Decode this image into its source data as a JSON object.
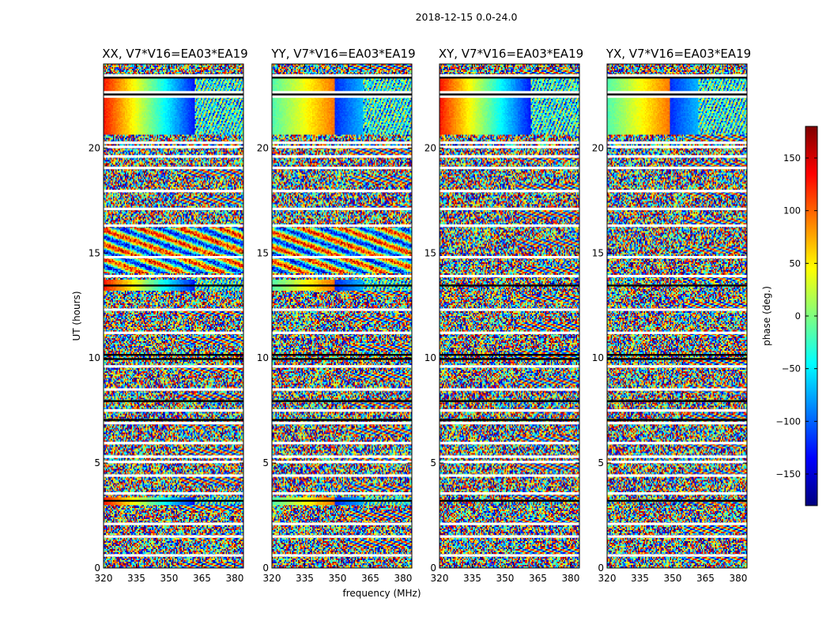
{
  "figure": {
    "suptitle": "2018-12-15 0.0-24.0",
    "xlabel": "frequency (MHz)",
    "ylabel": "UT (hours)"
  },
  "colorbar": {
    "label": "phase (deg.)",
    "range": [
      -180,
      180
    ],
    "ticks": [
      150,
      100,
      50,
      0,
      -50,
      -100,
      -150
    ],
    "colormap": "jet",
    "colors": [
      "#00007f",
      "#0000ff",
      "#007fff",
      "#00ffff",
      "#7fff7f",
      "#ffff00",
      "#ff7f00",
      "#ff0000",
      "#7f0000"
    ]
  },
  "chart_data": [
    {
      "type": "heatmap",
      "title": "XX, V7*V16=EA03*EA19",
      "x_ticks": [
        320,
        335,
        350,
        365,
        380
      ],
      "y_ticks": [
        0,
        5,
        10,
        15,
        20
      ],
      "xlim": [
        320,
        384
      ],
      "ylim": [
        0,
        24
      ],
      "value_range": [
        -180,
        180
      ],
      "coherent_bands": [
        {
          "t0": 22.5,
          "t1": 23.3,
          "pattern": "gradient"
        },
        {
          "t0": 20.6,
          "t1": 22.4,
          "pattern": "gradient"
        },
        {
          "t0": 13.2,
          "t1": 13.7,
          "pattern": "gradient"
        },
        {
          "t0": 3.0,
          "t1": 3.4,
          "pattern": "gradient"
        },
        {
          "t0": 14.0,
          "t1": 16.2,
          "pattern": "fringe"
        }
      ]
    },
    {
      "type": "heatmap",
      "title": "YY, V7*V16=EA03*EA19",
      "x_ticks": [
        320,
        335,
        350,
        365,
        380
      ],
      "y_ticks": [
        0,
        5,
        10,
        15,
        20
      ],
      "xlim": [
        320,
        384
      ],
      "ylim": [
        0,
        24
      ],
      "value_range": [
        -180,
        180
      ],
      "coherent_bands": [
        {
          "t0": 22.5,
          "t1": 23.3,
          "pattern": "gradient"
        },
        {
          "t0": 20.6,
          "t1": 22.4,
          "pattern": "gradient"
        },
        {
          "t0": 13.2,
          "t1": 13.7,
          "pattern": "gradient"
        },
        {
          "t0": 3.0,
          "t1": 3.4,
          "pattern": "gradient"
        },
        {
          "t0": 14.0,
          "t1": 16.2,
          "pattern": "fringe"
        }
      ]
    },
    {
      "type": "heatmap",
      "title": "XY, V7*V16=EA03*EA19",
      "x_ticks": [
        320,
        335,
        350,
        365,
        380
      ],
      "y_ticks": [
        0,
        5,
        10,
        15,
        20
      ],
      "xlim": [
        320,
        384
      ],
      "ylim": [
        0,
        24
      ],
      "value_range": [
        -180,
        180
      ],
      "coherent_bands": [
        {
          "t0": 20.6,
          "t1": 23.3,
          "pattern": "gradient"
        }
      ]
    },
    {
      "type": "heatmap",
      "title": "YX, V7*V16=EA03*EA19",
      "x_ticks": [
        320,
        335,
        350,
        365,
        380
      ],
      "y_ticks": [
        0,
        5,
        10,
        15,
        20
      ],
      "xlim": [
        320,
        384
      ],
      "ylim": [
        0,
        24
      ],
      "value_range": [
        -180,
        180
      ],
      "coherent_bands": [
        {
          "t0": 20.6,
          "t1": 23.3,
          "pattern": "gradient"
        }
      ]
    }
  ]
}
